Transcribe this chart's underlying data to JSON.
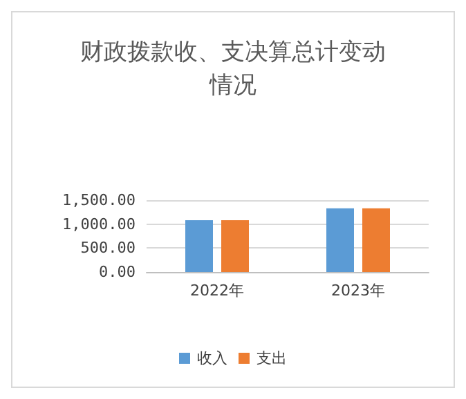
{
  "chart_data": {
    "type": "bar",
    "title": "财政拨款收、支决算总计变动情况",
    "categories": [
      "2022年",
      "2023年"
    ],
    "series": [
      {
        "name": "收入",
        "color": "#5b9bd5",
        "values": [
          1080,
          1330
        ]
      },
      {
        "name": "支出",
        "color": "#ed7d31",
        "values": [
          1080,
          1330
        ]
      }
    ],
    "ylim": [
      0,
      1500
    ],
    "yticks": [
      {
        "value": 0,
        "label": "0.00"
      },
      {
        "value": 500,
        "label": "500.00"
      },
      {
        "value": 1000,
        "label": "1,000.00"
      },
      {
        "value": 1500,
        "label": "1,500.00"
      }
    ],
    "grid": "y",
    "legend": "bottom"
  }
}
